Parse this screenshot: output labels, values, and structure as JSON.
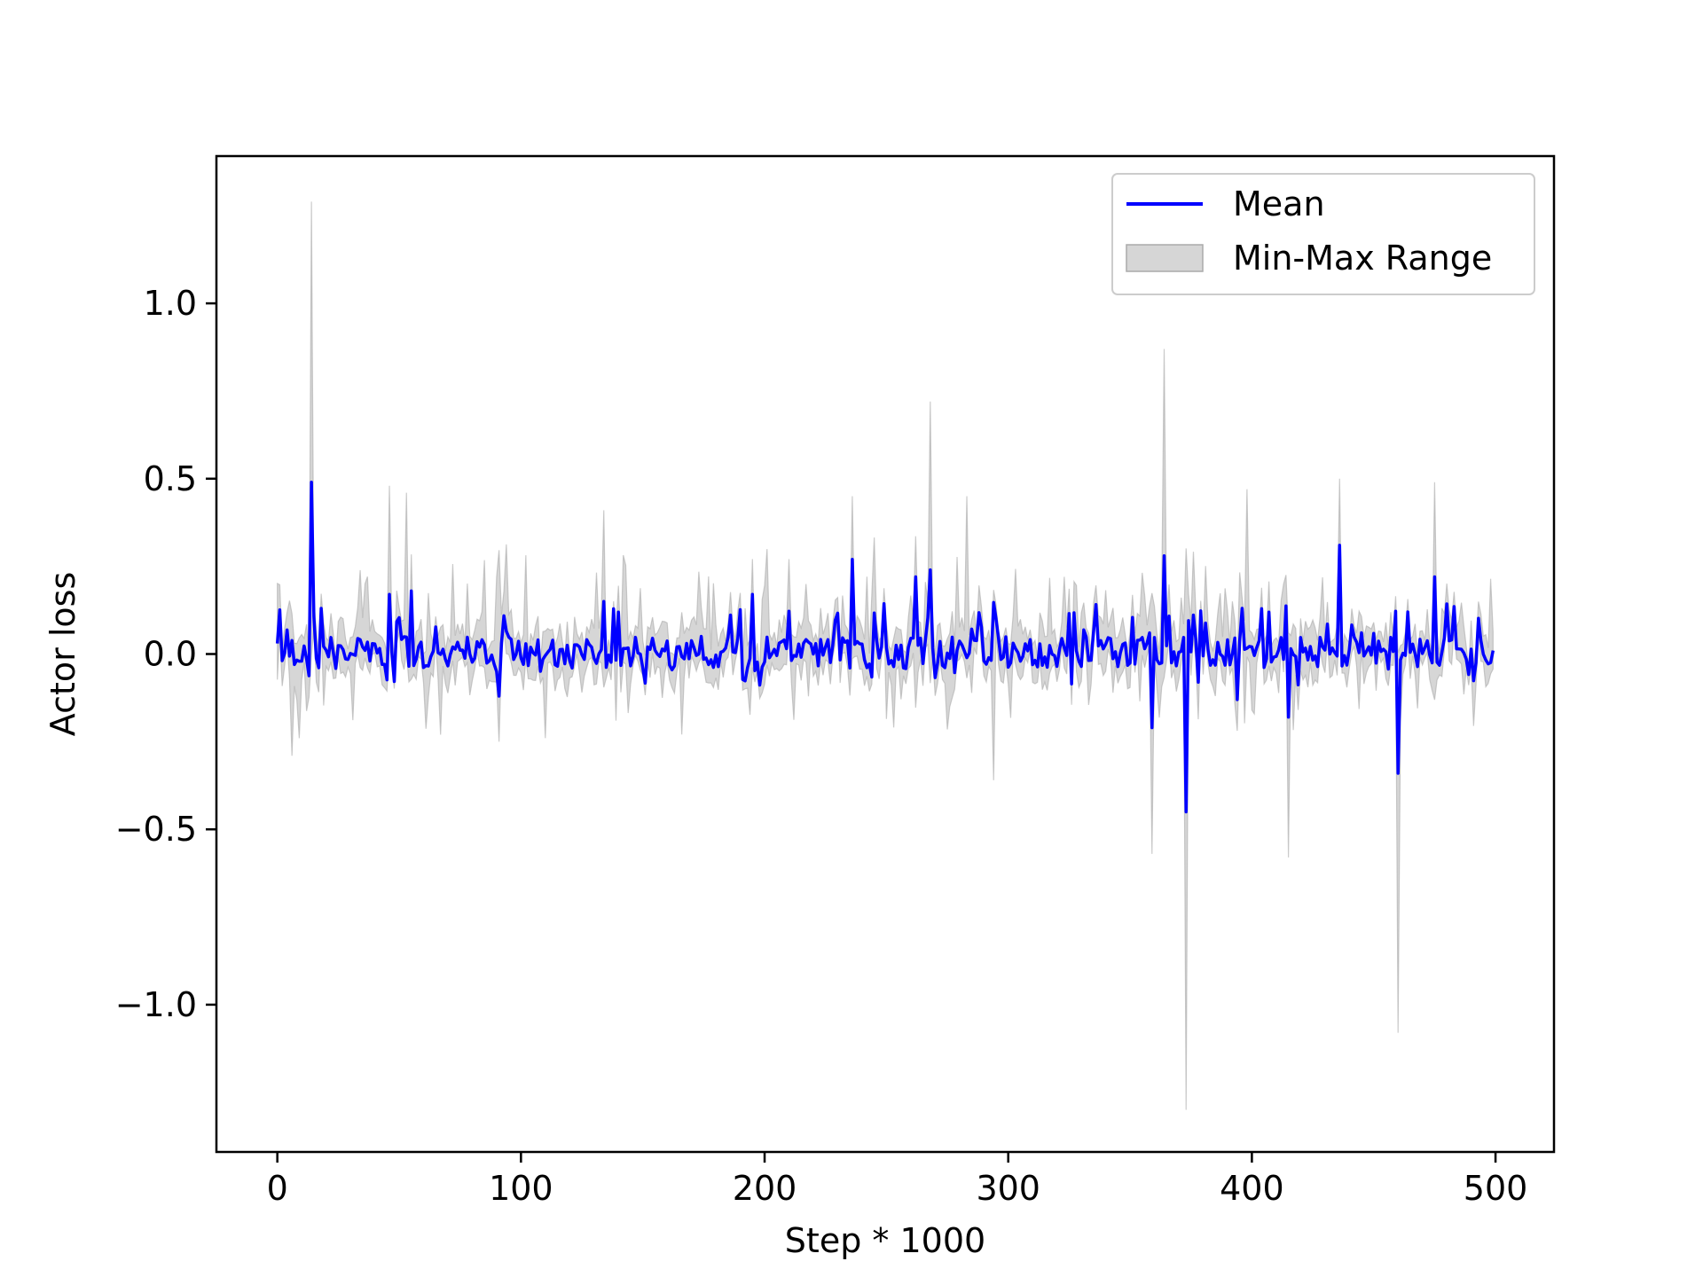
{
  "chart_data": {
    "type": "line",
    "title": "",
    "xlabel": "Step * 1000",
    "ylabel": "Actor loss",
    "xlim": [
      -25,
      524
    ],
    "ylim": [
      -1.42,
      1.42
    ],
    "xticks": [
      0,
      100,
      200,
      300,
      400,
      500
    ],
    "xtick_labels": [
      "0",
      "100",
      "200",
      "300",
      "400",
      "500"
    ],
    "yticks": [
      -1.0,
      -0.5,
      0.0,
      0.5,
      1.0
    ],
    "ytick_labels": [
      "−1.0",
      "−0.5",
      "0.0",
      "0.5",
      "1.0"
    ],
    "grid": false,
    "legend": {
      "placement": "upper-right",
      "entries": [
        "Mean",
        "Min-Max Range"
      ]
    },
    "colors": {
      "mean": "#0000ff",
      "range_fill": "#c8c8c8",
      "range_edge": "#aaaaaa"
    },
    "n_points": 500,
    "series": [
      {
        "name": "Mean",
        "role": "line",
        "baseline": 0.0,
        "key_points": [
          [
            0,
            0.03
          ],
          [
            14,
            0.49
          ],
          [
            46,
            0.17
          ],
          [
            55,
            0.18
          ],
          [
            91,
            -0.12
          ],
          [
            134,
            0.15
          ],
          [
            195,
            0.17
          ],
          [
            236,
            0.27
          ],
          [
            262,
            0.22
          ],
          [
            268,
            0.24
          ],
          [
            359,
            -0.21
          ],
          [
            364,
            0.28
          ],
          [
            373,
            -0.45
          ],
          [
            394,
            -0.13
          ],
          [
            415,
            -0.18
          ],
          [
            436,
            0.31
          ],
          [
            460,
            -0.34
          ],
          [
            475,
            0.22
          ],
          [
            499,
            0.01
          ]
        ]
      },
      {
        "name": "Min-Max Range",
        "role": "band",
        "max_points": [
          [
            14,
            1.29
          ],
          [
            46,
            0.48
          ],
          [
            53,
            0.46
          ],
          [
            134,
            0.41
          ],
          [
            236,
            0.45
          ],
          [
            268,
            0.72
          ],
          [
            283,
            0.45
          ],
          [
            364,
            0.87
          ],
          [
            398,
            0.47
          ],
          [
            436,
            0.5
          ],
          [
            475,
            0.49
          ]
        ],
        "min_points": [
          [
            6,
            -0.29
          ],
          [
            9,
            -0.24
          ],
          [
            91,
            -0.25
          ],
          [
            110,
            -0.24
          ],
          [
            294,
            -0.36
          ],
          [
            359,
            -0.57
          ],
          [
            373,
            -1.3
          ],
          [
            415,
            -0.58
          ],
          [
            460,
            -1.08
          ]
        ]
      }
    ]
  }
}
